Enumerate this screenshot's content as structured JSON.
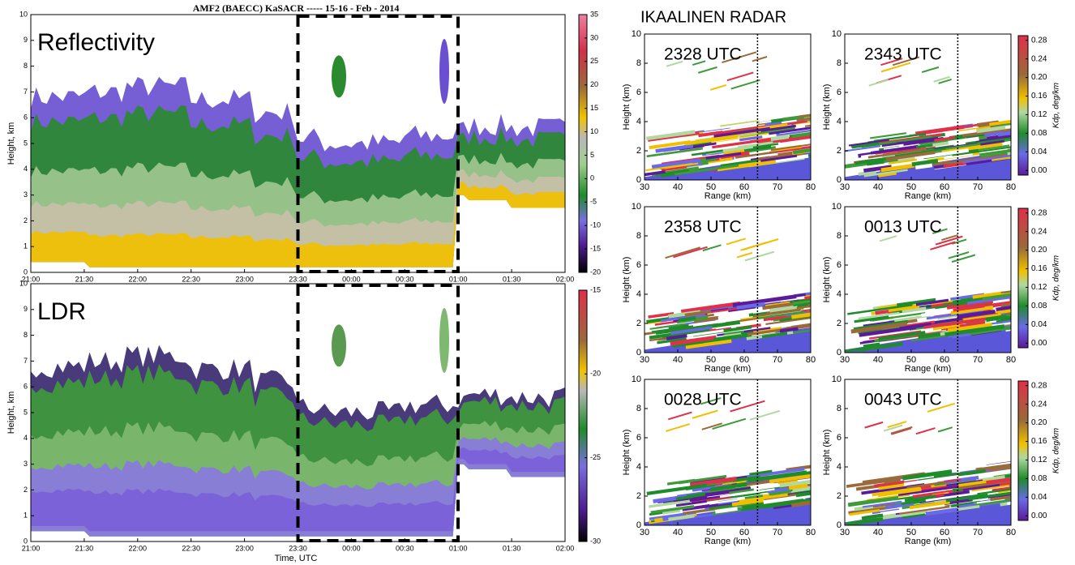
{
  "chart_data": [
    {
      "type": "heatmap",
      "title": "AMF2 (BAECC) KaSACR ----- 15-16 - Feb - 2014",
      "label": "Reflectivity",
      "ylabel": "Height, km",
      "xlim": [
        21,
        26
      ],
      "xticks": [
        {
          "value": 21,
          "label": "21:00"
        },
        {
          "value": 21.5,
          "label": "21:30"
        },
        {
          "value": 22,
          "label": "22:00"
        },
        {
          "value": 22.5,
          "label": "22:30"
        },
        {
          "value": 23,
          "label": "23:00"
        },
        {
          "value": 23.5,
          "label": "23:30"
        },
        {
          "value": 24,
          "label": "00:00"
        },
        {
          "value": 24.5,
          "label": "00:30"
        },
        {
          "value": 25,
          "label": "01:00"
        },
        {
          "value": 25.5,
          "label": "01:30"
        },
        {
          "value": 26,
          "label": "02:00"
        }
      ],
      "ylim": [
        0,
        10
      ],
      "yticks": [
        0,
        1,
        2,
        3,
        4,
        5,
        6,
        7,
        8,
        9,
        10
      ],
      "colorbar": {
        "lim": [
          -20,
          35
        ],
        "ticks": [
          35,
          30,
          25,
          20,
          15,
          10,
          5,
          0,
          -5,
          -10,
          -15,
          -20
        ]
      }
    },
    {
      "type": "heatmap",
      "label": "LDR",
      "ylabel": "Height, km",
      "xlabel": "Time, UTC",
      "xlim": [
        21,
        26
      ],
      "xticks": [
        {
          "value": 21,
          "label": "21:00"
        },
        {
          "value": 21.5,
          "label": "21:30"
        },
        {
          "value": 22,
          "label": "22:00"
        },
        {
          "value": 22.5,
          "label": "22:30"
        },
        {
          "value": 23,
          "label": "23:00"
        },
        {
          "value": 23.5,
          "label": "23:30"
        },
        {
          "value": 24,
          "label": "00:00"
        },
        {
          "value": 24.5,
          "label": "00:30"
        },
        {
          "value": 25,
          "label": "01:00"
        },
        {
          "value": 25.5,
          "label": "01:30"
        },
        {
          "value": 26,
          "label": "02:00"
        }
      ],
      "ylim": [
        0,
        10
      ],
      "yticks": [
        0,
        1,
        2,
        3,
        4,
        5,
        6,
        7,
        8,
        9,
        10
      ],
      "colorbar": {
        "lim": [
          -30,
          -15
        ],
        "ticks": [
          -15,
          -20,
          -25,
          -30
        ]
      }
    },
    {
      "type": "heatmap",
      "title": "IKAALINEN RADAR",
      "label": "2328 UTC",
      "xlabel": "Range (km)",
      "ylabel": "Height (km)",
      "xlim": [
        30,
        80
      ],
      "xticks": [
        30,
        40,
        50,
        60,
        70,
        80
      ],
      "ylim": [
        0,
        10
      ],
      "yticks": [
        0,
        2,
        4,
        6,
        8,
        10
      ]
    },
    {
      "type": "heatmap",
      "label": "2343 UTC",
      "xlabel": "Range (km)",
      "ylabel": "Height (km)",
      "xlim": [
        30,
        80
      ],
      "xticks": [
        30,
        40,
        50,
        60,
        70,
        80
      ],
      "ylim": [
        0,
        10
      ],
      "yticks": [
        0,
        2,
        4,
        6,
        8,
        10
      ],
      "colorbar": {
        "label": "Kdp, deg/km",
        "lim": [
          -0.01,
          0.29
        ],
        "ticks": [
          {
            "value": 0,
            "label": "0.00"
          },
          {
            "value": 0.04,
            "label": "0.04"
          },
          {
            "value": 0.08,
            "label": "0.08"
          },
          {
            "value": 0.12,
            "label": "0.12"
          },
          {
            "value": 0.16,
            "label": "0.16"
          },
          {
            "value": 0.2,
            "label": "0.20"
          },
          {
            "value": 0.24,
            "label": "0.24"
          },
          {
            "value": 0.28,
            "label": "0.28"
          }
        ]
      }
    },
    {
      "type": "heatmap",
      "label": "2358 UTC",
      "xlabel": "Range (km)",
      "ylabel": "Height (km)",
      "xlim": [
        30,
        80
      ],
      "xticks": [
        30,
        40,
        50,
        60,
        70,
        80
      ],
      "ylim": [
        0,
        10
      ],
      "yticks": [
        0,
        2,
        4,
        6,
        8,
        10
      ]
    },
    {
      "type": "heatmap",
      "label": "0013 UTC",
      "xlabel": "Range (km)",
      "ylabel": "Height (km)",
      "xlim": [
        30,
        80
      ],
      "xticks": [
        30,
        40,
        50,
        60,
        70,
        80
      ],
      "ylim": [
        0,
        10
      ],
      "yticks": [
        0,
        2,
        4,
        6,
        8,
        10
      ],
      "colorbar": {
        "label": "Kdp, deg/km",
        "lim": [
          -0.01,
          0.29
        ],
        "ticks": [
          {
            "value": 0,
            "label": "0.00"
          },
          {
            "value": 0.04,
            "label": "0.04"
          },
          {
            "value": 0.08,
            "label": "0.08"
          },
          {
            "value": 0.12,
            "label": "0.12"
          },
          {
            "value": 0.16,
            "label": "0.16"
          },
          {
            "value": 0.2,
            "label": "0.20"
          },
          {
            "value": 0.24,
            "label": "0.24"
          },
          {
            "value": 0.28,
            "label": "0.28"
          }
        ]
      }
    },
    {
      "type": "heatmap",
      "label": "0028 UTC",
      "xlabel": "Range (km)",
      "ylabel": "Height (km)",
      "xlim": [
        30,
        80
      ],
      "xticks": [
        30,
        40,
        50,
        60,
        70,
        80
      ],
      "ylim": [
        0,
        10
      ],
      "yticks": [
        0,
        2,
        4,
        6,
        8,
        10
      ]
    },
    {
      "type": "heatmap",
      "label": "0043 UTC",
      "xlabel": "Range (km)",
      "ylabel": "Height (km)",
      "xlim": [
        30,
        80
      ],
      "xticks": [
        30,
        40,
        50,
        60,
        70,
        80
      ],
      "ylim": [
        0,
        10
      ],
      "yticks": [
        0,
        2,
        4,
        6,
        8,
        10
      ],
      "colorbar": {
        "label": "Kdp, deg/km",
        "lim": [
          -0.01,
          0.29
        ],
        "ticks": [
          {
            "value": 0,
            "label": "0.00"
          },
          {
            "value": 0.04,
            "label": "0.04"
          },
          {
            "value": 0.08,
            "label": "0.08"
          },
          {
            "value": 0.12,
            "label": "0.12"
          },
          {
            "value": 0.16,
            "label": "0.16"
          },
          {
            "value": 0.2,
            "label": "0.20"
          },
          {
            "value": 0.24,
            "label": "0.24"
          },
          {
            "value": 0.28,
            "label": "0.28"
          }
        ]
      }
    }
  ]
}
